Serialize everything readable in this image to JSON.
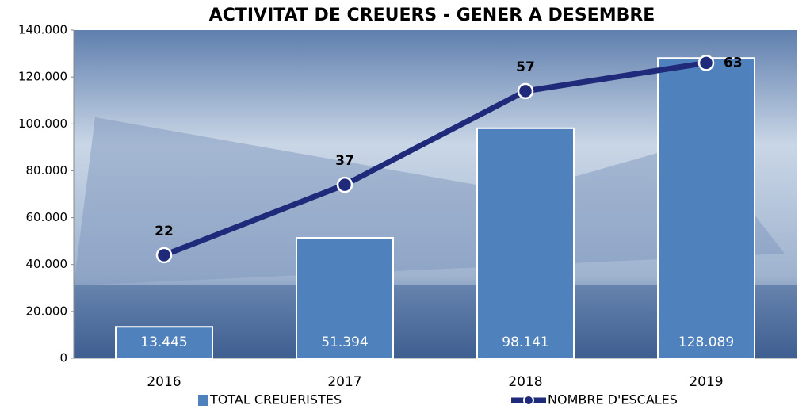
{
  "chart_data": {
    "type": "bar-line",
    "title": "ACTIVITAT DE CREUERS - GENER A DESEMBRE",
    "categories": [
      "2016",
      "2017",
      "2018",
      "2019"
    ],
    "series": [
      {
        "name": "TOTAL CREUERISTES",
        "type": "bar",
        "color": "#4f81bd",
        "values": [
          13445,
          51394,
          98141,
          128089
        ],
        "value_labels": [
          "13.445",
          "51.394",
          "98.141",
          "128.089"
        ]
      },
      {
        "name": "NOMBRE D'ESCALES",
        "type": "line",
        "axis": "y2",
        "color": "#1f2a7a",
        "values": [
          22,
          37,
          57,
          63
        ]
      }
    ],
    "ylim": [
      0,
      140000
    ],
    "yticks": [
      0,
      {
        "value": 20000,
        "label": "20.000"
      },
      {
        "value": 40000,
        "label": "40.000"
      },
      {
        "value": 60000,
        "label": "60.000"
      },
      {
        "value": 80000,
        "label": "80.000"
      },
      {
        "value": 100000,
        "label": "100.000"
      },
      {
        "value": 120000,
        "label": "120.000"
      },
      {
        "value": 140000,
        "label": "140.000"
      }
    ],
    "y2lim": [
      0,
      70
    ]
  }
}
